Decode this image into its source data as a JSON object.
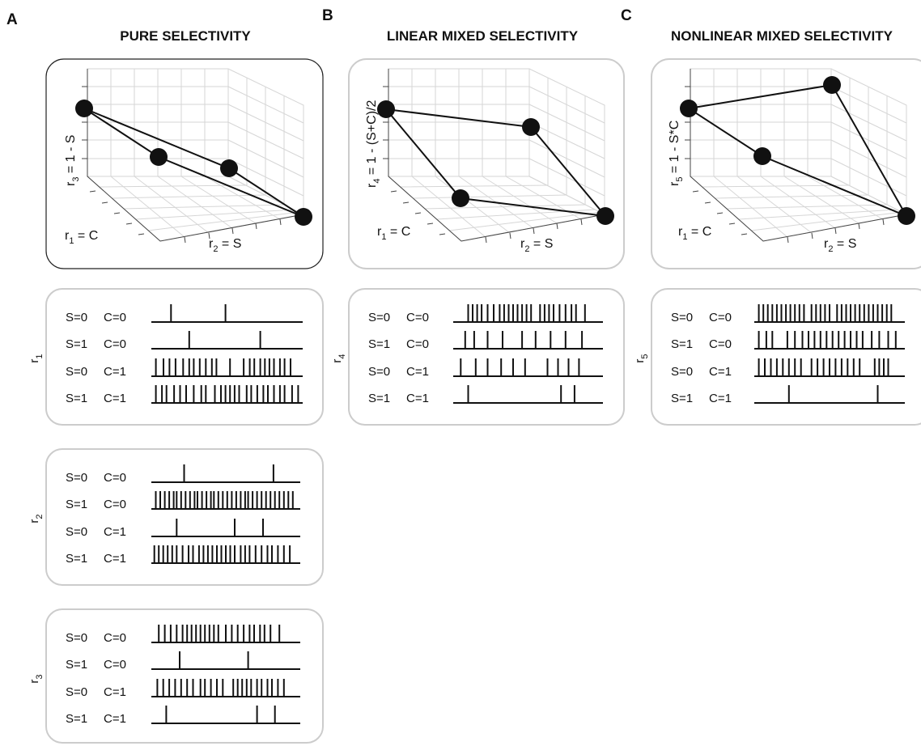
{
  "panels": [
    {
      "id": "A",
      "letter": "A",
      "title": "PURE SELECTIVITY",
      "cube": {
        "z_label": "r",
        "z_sub": "3",
        "z_rest": " = 1 - S",
        "x_label": "r",
        "x_sub": "1",
        "x_rest": " = C",
        "y_label": "r",
        "y_sub": "2",
        "y_rest": " = S"
      },
      "rasters": [
        {
          "neuron": "r",
          "neuron_sub": "1",
          "rows": [
            {
              "s": "S=0",
              "c": "C=0",
              "spikes": [
                0.13,
                0.49
              ]
            },
            {
              "s": "S=1",
              "c": "C=0",
              "spikes": [
                0.25,
                0.72
              ]
            },
            {
              "s": "S=0",
              "c": "C=1",
              "spikes": [
                0.03,
                0.08,
                0.12,
                0.16,
                0.21,
                0.25,
                0.28,
                0.32,
                0.36,
                0.4,
                0.43,
                0.52,
                0.61,
                0.65,
                0.68,
                0.72,
                0.75,
                0.78,
                0.81,
                0.85,
                0.88,
                0.92
              ]
            },
            {
              "s": "S=1",
              "c": "C=1",
              "spikes": [
                0.03,
                0.07,
                0.1,
                0.15,
                0.19,
                0.23,
                0.28,
                0.33,
                0.36,
                0.42,
                0.46,
                0.49,
                0.52,
                0.55,
                0.58,
                0.63,
                0.66,
                0.7,
                0.74,
                0.77,
                0.81,
                0.85,
                0.88,
                0.93,
                0.97
              ]
            }
          ]
        },
        {
          "neuron": "r",
          "neuron_sub": "2",
          "rows": [
            {
              "s": "S=0",
              "c": "C=0",
              "spikes": [
                0.22,
                0.82
              ]
            },
            {
              "s": "S=1",
              "c": "C=0",
              "spikes": [
                0.03,
                0.06,
                0.09,
                0.12,
                0.15,
                0.17,
                0.2,
                0.23,
                0.26,
                0.29,
                0.31,
                0.34,
                0.37,
                0.4,
                0.42,
                0.45,
                0.48,
                0.51,
                0.54,
                0.57,
                0.6,
                0.63,
                0.65,
                0.68,
                0.71,
                0.74,
                0.77,
                0.8,
                0.83,
                0.86,
                0.89,
                0.92,
                0.95
              ]
            },
            {
              "s": "S=0",
              "c": "C=1",
              "spikes": [
                0.17,
                0.56,
                0.75
              ]
            },
            {
              "s": "S=1",
              "c": "C=1",
              "spikes": [
                0.02,
                0.05,
                0.08,
                0.11,
                0.14,
                0.17,
                0.21,
                0.25,
                0.28,
                0.32,
                0.35,
                0.38,
                0.41,
                0.44,
                0.47,
                0.5,
                0.53,
                0.56,
                0.6,
                0.63,
                0.66,
                0.7,
                0.74,
                0.78,
                0.81,
                0.85,
                0.89,
                0.93
              ]
            }
          ]
        },
        {
          "neuron": "r",
          "neuron_sub": "3",
          "rows": [
            {
              "s": "S=0",
              "c": "C=0",
              "spikes": [
                0.05,
                0.09,
                0.13,
                0.17,
                0.21,
                0.24,
                0.27,
                0.3,
                0.33,
                0.36,
                0.39,
                0.42,
                0.45,
                0.5,
                0.54,
                0.58,
                0.62,
                0.66,
                0.69,
                0.73,
                0.76,
                0.8,
                0.86
              ]
            },
            {
              "s": "S=1",
              "c": "C=0",
              "spikes": [
                0.19,
                0.65
              ]
            },
            {
              "s": "S=0",
              "c": "C=1",
              "spikes": [
                0.04,
                0.08,
                0.12,
                0.16,
                0.2,
                0.24,
                0.28,
                0.33,
                0.36,
                0.4,
                0.44,
                0.48,
                0.55,
                0.58,
                0.61,
                0.64,
                0.67,
                0.71,
                0.74,
                0.78,
                0.81,
                0.85,
                0.89
              ]
            },
            {
              "s": "S=1",
              "c": "C=1",
              "spikes": [
                0.1,
                0.71,
                0.83
              ]
            }
          ]
        }
      ]
    },
    {
      "id": "B",
      "letter": "B",
      "title": "LINEAR MIXED SELECTIVITY",
      "cube": {
        "z_label": "r",
        "z_sub": "4",
        "z_rest": " = 1 - (S+C)/2",
        "x_label": "r",
        "x_sub": "1",
        "x_rest": " = C",
        "y_label": "r",
        "y_sub": "2",
        "y_rest": " = S"
      },
      "rasters": [
        {
          "neuron": "r",
          "neuron_sub": "4",
          "rows": [
            {
              "s": "S=0",
              "c": "C=0",
              "spikes": [
                0.1,
                0.13,
                0.16,
                0.19,
                0.23,
                0.27,
                0.31,
                0.34,
                0.37,
                0.4,
                0.43,
                0.46,
                0.49,
                0.52,
                0.58,
                0.61,
                0.64,
                0.67,
                0.71,
                0.75,
                0.79,
                0.82,
                0.88
              ]
            },
            {
              "s": "S=1",
              "c": "C=0",
              "spikes": [
                0.08,
                0.14,
                0.23,
                0.33,
                0.46,
                0.55,
                0.65,
                0.75,
                0.86
              ]
            },
            {
              "s": "S=0",
              "c": "C=1",
              "spikes": [
                0.05,
                0.15,
                0.23,
                0.32,
                0.4,
                0.48,
                0.63,
                0.7,
                0.77,
                0.84
              ]
            },
            {
              "s": "S=1",
              "c": "C=1",
              "spikes": [
                0.1,
                0.72,
                0.81
              ]
            }
          ]
        }
      ]
    },
    {
      "id": "C",
      "letter": "C",
      "title": "NONLINEAR MIXED SELECTIVITY",
      "cube": {
        "z_label": "r",
        "z_sub": "5",
        "z_rest": " = 1 - S*C",
        "x_label": "r",
        "x_sub": "1",
        "x_rest": " = C",
        "y_label": "r",
        "y_sub": "2",
        "y_rest": " = S"
      },
      "rasters": [
        {
          "neuron": "r",
          "neuron_sub": "5",
          "rows": [
            {
              "s": "S=0",
              "c": "C=0",
              "spikes": [
                0.03,
                0.06,
                0.09,
                0.12,
                0.15,
                0.18,
                0.21,
                0.24,
                0.27,
                0.3,
                0.33,
                0.38,
                0.41,
                0.44,
                0.47,
                0.5,
                0.55,
                0.58,
                0.61,
                0.64,
                0.67,
                0.7,
                0.73,
                0.76,
                0.79,
                0.82,
                0.85,
                0.88,
                0.91
              ]
            },
            {
              "s": "S=1",
              "c": "C=0",
              "spikes": [
                0.03,
                0.08,
                0.12,
                0.22,
                0.27,
                0.32,
                0.36,
                0.4,
                0.44,
                0.48,
                0.52,
                0.56,
                0.6,
                0.64,
                0.68,
                0.72,
                0.78,
                0.83,
                0.89,
                0.94
              ]
            },
            {
              "s": "S=0",
              "c": "C=1",
              "spikes": [
                0.03,
                0.07,
                0.11,
                0.15,
                0.19,
                0.23,
                0.27,
                0.31,
                0.38,
                0.42,
                0.46,
                0.5,
                0.54,
                0.58,
                0.62,
                0.66,
                0.7,
                0.8,
                0.83,
                0.86,
                0.89
              ]
            },
            {
              "s": "S=1",
              "c": "C=1",
              "spikes": [
                0.23,
                0.82
              ]
            }
          ]
        }
      ]
    }
  ]
}
